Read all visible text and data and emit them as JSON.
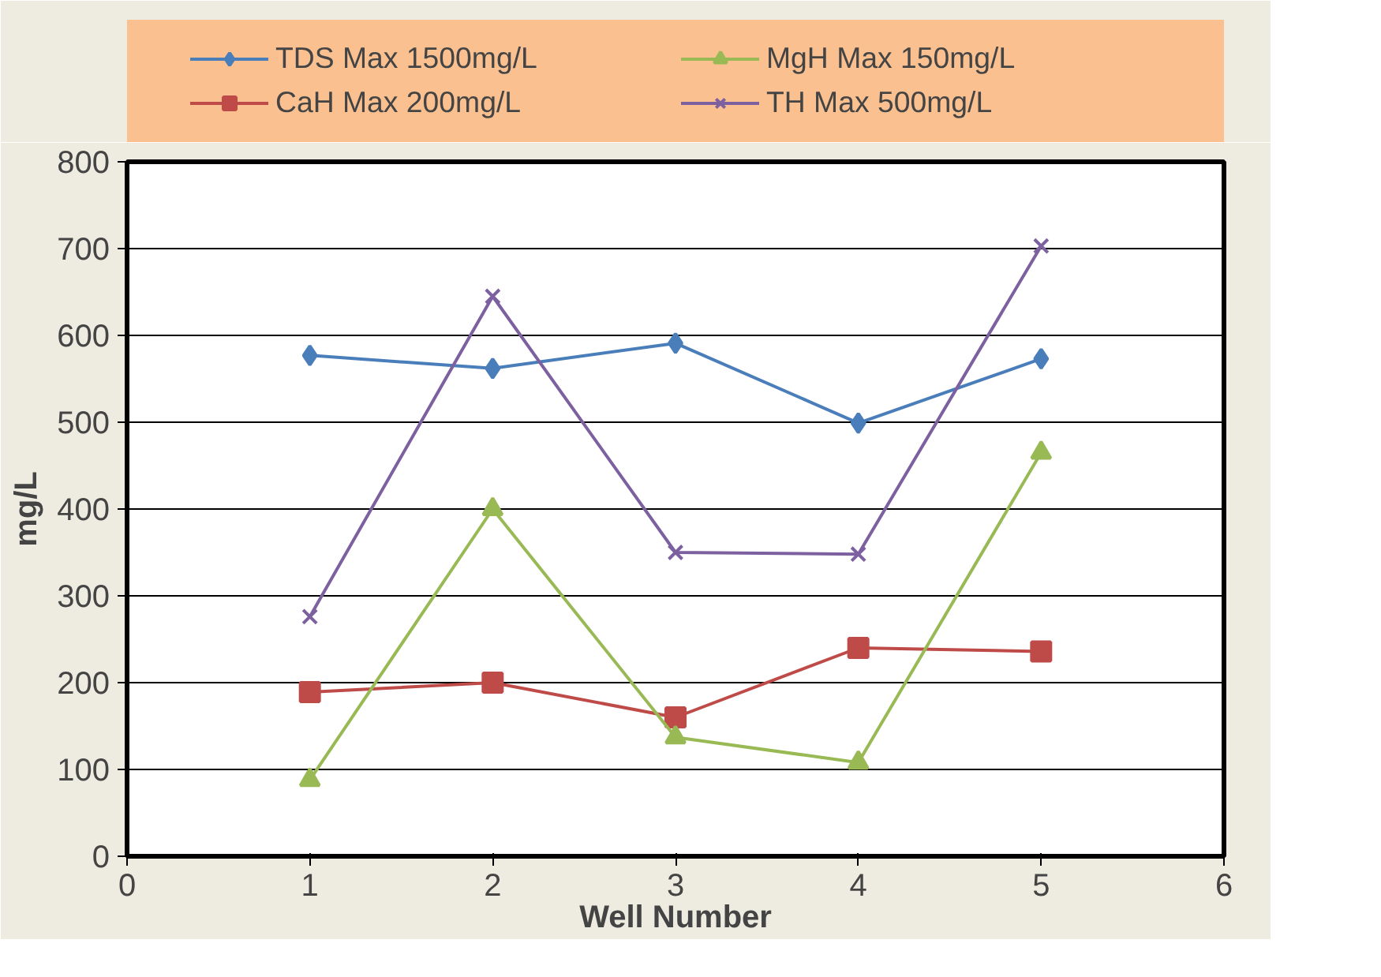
{
  "chart_data": {
    "type": "line",
    "xlabel": "Well Number",
    "ylabel": "mg/L",
    "x": [
      1,
      2,
      3,
      4,
      5
    ],
    "series": [
      {
        "name": "TDS Max 1500mg/L",
        "color": "#4a7ebb",
        "marker": "diamond",
        "values": [
          577,
          562,
          591,
          499,
          573
        ]
      },
      {
        "name": "CaH Max 200mg/L",
        "color": "#be4b48",
        "marker": "square",
        "values": [
          189,
          200,
          160,
          240,
          236
        ]
      },
      {
        "name": "MgH Max 150mg/L",
        "color": "#98b954",
        "marker": "triangle",
        "values": [
          88,
          400,
          137,
          108,
          465
        ]
      },
      {
        "name": "TH Max 500mg/L",
        "color": "#7d60a0",
        "marker": "cross",
        "values": [
          276,
          645,
          350,
          348,
          703
        ]
      }
    ],
    "xlim": [
      0,
      6
    ],
    "xticks": [
      0,
      1,
      2,
      3,
      4,
      5,
      6
    ],
    "ylim": [
      0,
      800
    ],
    "yticks": [
      0,
      100,
      200,
      300,
      400,
      500,
      600,
      700,
      800
    ],
    "grid": "y",
    "legend": "top",
    "line_style": "solid"
  }
}
